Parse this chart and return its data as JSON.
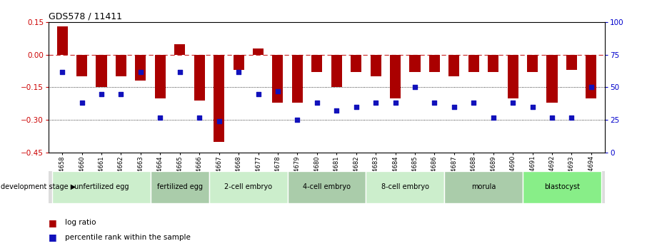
{
  "title": "GDS578 / 11411",
  "samples": [
    "GSM14658",
    "GSM14660",
    "GSM14661",
    "GSM14662",
    "GSM14663",
    "GSM14664",
    "GSM14665",
    "GSM14666",
    "GSM14667",
    "GSM14668",
    "GSM14677",
    "GSM14678",
    "GSM14679",
    "GSM14680",
    "GSM14681",
    "GSM14682",
    "GSM14683",
    "GSM14684",
    "GSM14685",
    "GSM14686",
    "GSM14687",
    "GSM14688",
    "GSM14689",
    "GSM14690",
    "GSM14691",
    "GSM14692",
    "GSM14693",
    "GSM14694"
  ],
  "log_ratio": [
    0.13,
    -0.1,
    -0.15,
    -0.1,
    -0.12,
    -0.2,
    0.05,
    -0.21,
    -0.4,
    -0.07,
    0.03,
    -0.22,
    -0.22,
    -0.08,
    -0.15,
    -0.08,
    -0.1,
    -0.2,
    -0.08,
    -0.08,
    -0.1,
    -0.08,
    -0.08,
    -0.2,
    -0.08,
    -0.22,
    -0.07,
    -0.2
  ],
  "percentile": [
    62,
    38,
    45,
    45,
    62,
    27,
    62,
    27,
    24,
    62,
    45,
    47,
    25,
    38,
    32,
    35,
    38,
    38,
    50,
    38,
    35,
    38,
    27,
    38,
    35,
    27,
    27,
    50
  ],
  "stages": [
    {
      "label": "unfertilized egg",
      "start": 0,
      "end": 5
    },
    {
      "label": "fertilized egg",
      "start": 5,
      "end": 8
    },
    {
      "label": "2-cell embryo",
      "start": 8,
      "end": 12
    },
    {
      "label": "4-cell embryo",
      "start": 12,
      "end": 16
    },
    {
      "label": "8-cell embryo",
      "start": 16,
      "end": 20
    },
    {
      "label": "morula",
      "start": 20,
      "end": 24
    },
    {
      "label": "blastocyst",
      "start": 24,
      "end": 28
    }
  ],
  "stage_colors": [
    "#cceecc",
    "#aaccaa",
    "#cceecc",
    "#aaccaa",
    "#cceecc",
    "#aaccaa",
    "#88ee88"
  ],
  "bar_color": "#aa0000",
  "dot_color": "#1111bb",
  "zero_line_color": "#cc3333",
  "grid_color": "#555555",
  "bg_color": "#f8f8f8",
  "ylim_left": [
    -0.45,
    0.15
  ],
  "ylim_right": [
    0,
    100
  ],
  "yticks_left": [
    -0.45,
    -0.3,
    -0.15,
    0.0,
    0.15
  ],
  "yticks_right": [
    0,
    25,
    50,
    75,
    100
  ]
}
